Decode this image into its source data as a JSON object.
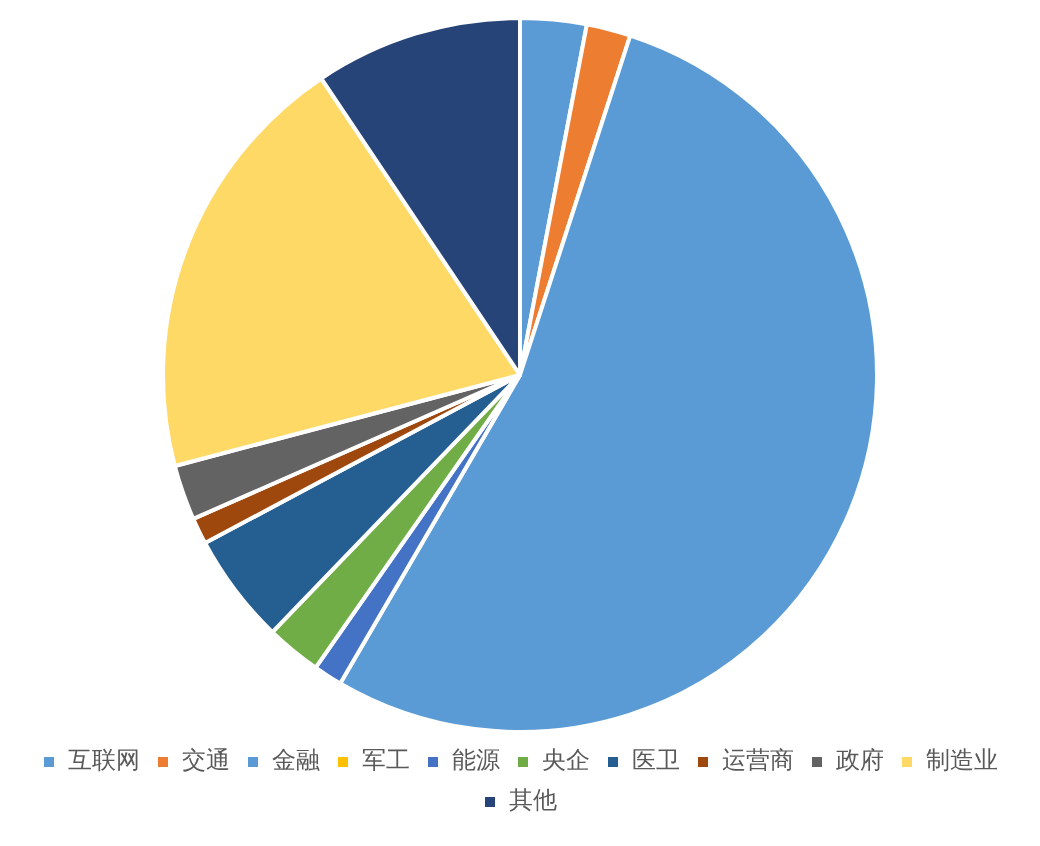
{
  "chart_data": {
    "type": "pie",
    "categories": [
      "互联网",
      "交通",
      "金融",
      "军工",
      "能源",
      "央企",
      "医卫",
      "运营商",
      "政府",
      "制造业",
      "其他"
    ],
    "values": [
      3,
      2,
      53.4,
      0,
      1.3,
      2.5,
      5,
      1.2,
      2.5,
      19.7,
      9.4
    ],
    "colors": [
      "#5b9bd5",
      "#ed7d31",
      "#5b9bd5",
      "#ffc000",
      "#4472c4",
      "#70ad47",
      "#255e91",
      "#9e480e",
      "#636363",
      "#ffd966",
      "#264478"
    ],
    "legend": "bottom"
  }
}
